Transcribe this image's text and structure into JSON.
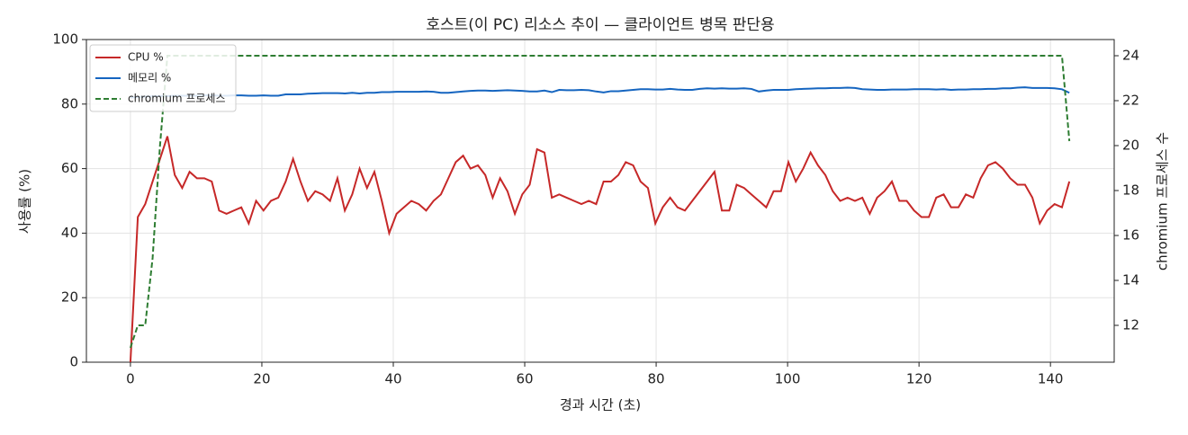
{
  "chart_data": {
    "type": "line",
    "title": "호스트(이 PC) 리소스 추이 — 클라이언트 병목 판단용",
    "x_label": "경과 시간 (초)",
    "y_label": "사용률 (%)",
    "y2_label": "chromium 프로세스 수",
    "x": [
      0,
      1.125,
      2.25,
      3.375,
      4.5,
      5.625,
      6.75,
      7.875,
      9,
      10.125,
      11.25,
      12.375,
      13.5,
      14.625,
      15.75,
      16.875,
      18,
      19.125,
      20.25,
      21.375,
      22.5,
      23.625,
      24.75,
      25.875,
      27,
      28.125,
      29.25,
      30.375,
      31.5,
      32.625,
      33.75,
      34.875,
      36,
      37.125,
      38.25,
      39.375,
      40.5,
      41.625,
      42.75,
      43.875,
      45,
      46.125,
      47.25,
      48.375,
      49.5,
      50.625,
      51.75,
      52.875,
      54,
      55.125,
      56.25,
      57.375,
      58.5,
      59.625,
      60.75,
      61.875,
      63,
      64.125,
      65.25,
      66.375,
      67.5,
      68.625,
      69.75,
      70.875,
      72,
      73.125,
      74.25,
      75.375,
      76.5,
      77.625,
      78.75,
      79.875,
      81,
      82.125,
      83.25,
      84.375,
      85.5,
      86.625,
      87.75,
      88.875,
      90,
      91.125,
      92.25,
      93.375,
      94.5,
      95.625,
      96.75,
      97.875,
      99,
      100.125,
      101.25,
      102.375,
      103.5,
      104.625,
      105.75,
      106.875,
      108,
      109.125,
      110.25,
      111.375,
      112.5,
      113.625,
      114.75,
      115.875,
      117,
      118.125,
      119.25,
      120.375,
      121.5,
      122.625,
      123.75,
      124.875,
      126,
      127.125,
      128.25,
      129.375,
      130.5,
      131.625,
      132.75,
      133.875,
      135,
      136.125,
      137.25,
      138.375,
      139.5,
      140.625,
      141.75,
      142.875
    ],
    "series": [
      {
        "name": "CPU %",
        "color": "#c62828",
        "values": [
          0,
          45,
          49,
          56,
          63,
          70,
          58,
          54,
          59,
          57,
          57,
          56,
          47,
          46,
          47,
          48,
          43,
          50,
          47,
          50,
          51,
          56,
          63,
          56,
          50,
          53,
          52,
          50,
          57,
          47,
          52,
          60,
          54,
          59,
          50,
          40,
          46,
          48,
          50,
          49,
          47,
          50,
          52,
          57,
          62,
          64,
          60,
          61,
          58,
          51,
          57,
          53,
          46,
          52,
          55,
          66,
          65,
          51,
          52,
          51,
          50,
          49,
          50,
          49,
          56,
          56,
          58,
          62,
          61,
          56,
          54,
          43,
          48,
          51,
          48,
          47,
          50,
          53,
          56,
          59,
          47,
          47,
          55,
          54,
          52,
          50,
          48,
          53,
          53,
          62,
          56,
          60,
          65,
          61,
          58,
          53,
          50,
          51,
          50,
          51,
          46,
          51,
          53,
          56,
          50,
          50,
          47,
          45,
          45,
          51,
          52,
          48,
          48,
          52,
          51,
          57,
          61,
          62,
          60,
          57,
          55,
          55,
          51,
          43,
          47,
          49,
          48,
          56
        ]
      },
      {
        "name": "메모리 %",
        "color": "#1565c0",
        "values": [
          82.0,
          82.2,
          82.3,
          82.4,
          82.5,
          82.5,
          82.6,
          82.6,
          82.6,
          82.6,
          82.7,
          82.7,
          82.6,
          82.6,
          82.7,
          82.7,
          82.6,
          82.6,
          82.7,
          82.6,
          82.6,
          83.0,
          83.0,
          83.0,
          83.2,
          83.3,
          83.4,
          83.4,
          83.4,
          83.3,
          83.5,
          83.3,
          83.5,
          83.5,
          83.7,
          83.7,
          83.8,
          83.8,
          83.8,
          83.8,
          83.9,
          83.8,
          83.5,
          83.5,
          83.7,
          83.9,
          84.1,
          84.2,
          84.2,
          84.1,
          84.2,
          84.3,
          84.2,
          84.1,
          83.9,
          83.9,
          84.2,
          83.7,
          84.4,
          84.3,
          84.3,
          84.4,
          84.3,
          83.9,
          83.6,
          84.0,
          84.0,
          84.2,
          84.4,
          84.6,
          84.6,
          84.5,
          84.5,
          84.7,
          84.5,
          84.4,
          84.4,
          84.7,
          84.9,
          84.8,
          84.9,
          84.8,
          84.8,
          84.9,
          84.7,
          83.9,
          84.2,
          84.4,
          84.4,
          84.4,
          84.6,
          84.7,
          84.8,
          84.9,
          84.9,
          85.0,
          85.0,
          85.1,
          85.0,
          84.6,
          84.5,
          84.4,
          84.4,
          84.5,
          84.5,
          84.5,
          84.6,
          84.6,
          84.6,
          84.5,
          84.6,
          84.4,
          84.5,
          84.5,
          84.6,
          84.6,
          84.7,
          84.7,
          84.9,
          84.9,
          85.1,
          85.2,
          85.0,
          85.0,
          85.0,
          84.9,
          84.6,
          83.5
        ]
      },
      {
        "name": "chromium 프로세스",
        "color": "#2e7d32",
        "axis": "y2",
        "linestyle": "dashed",
        "values": [
          11,
          12,
          12,
          15,
          20,
          24,
          24,
          24,
          24,
          24,
          24,
          24,
          24,
          24,
          24,
          24,
          24,
          24,
          24,
          24,
          24,
          24,
          24,
          24,
          24,
          24,
          24,
          24,
          24,
          24,
          24,
          24,
          24,
          24,
          24,
          24,
          24,
          24,
          24,
          24,
          24,
          24,
          24,
          24,
          24,
          24,
          24,
          24,
          24,
          24,
          24,
          24,
          24,
          24,
          24,
          24,
          24,
          24,
          24,
          24,
          24,
          24,
          24,
          24,
          24,
          24,
          24,
          24,
          24,
          24,
          24,
          24,
          24,
          24,
          24,
          24,
          24,
          24,
          24,
          24,
          24,
          24,
          24,
          24,
          24,
          24,
          24,
          24,
          24,
          24,
          24,
          24,
          24,
          24,
          24,
          24,
          24,
          24,
          24,
          24,
          24,
          24,
          24,
          24,
          24,
          24,
          24,
          24,
          24,
          24,
          24,
          24,
          24,
          24,
          24,
          24,
          24,
          24,
          24,
          24,
          24,
          24,
          24,
          24,
          24,
          24,
          24,
          20.2
        ]
      }
    ],
    "xlim": [
      -6.7,
      149.7
    ],
    "xticks": [
      0,
      20,
      40,
      60,
      80,
      100,
      120,
      140
    ],
    "ylim": [
      0,
      100
    ],
    "yticks": [
      0,
      20,
      40,
      60,
      80,
      100
    ],
    "y2lim": [
      10.36,
      24.72
    ],
    "y2ticks": [
      12,
      14,
      16,
      18,
      20,
      22,
      24
    ],
    "grid": true,
    "legend": "upper left"
  }
}
